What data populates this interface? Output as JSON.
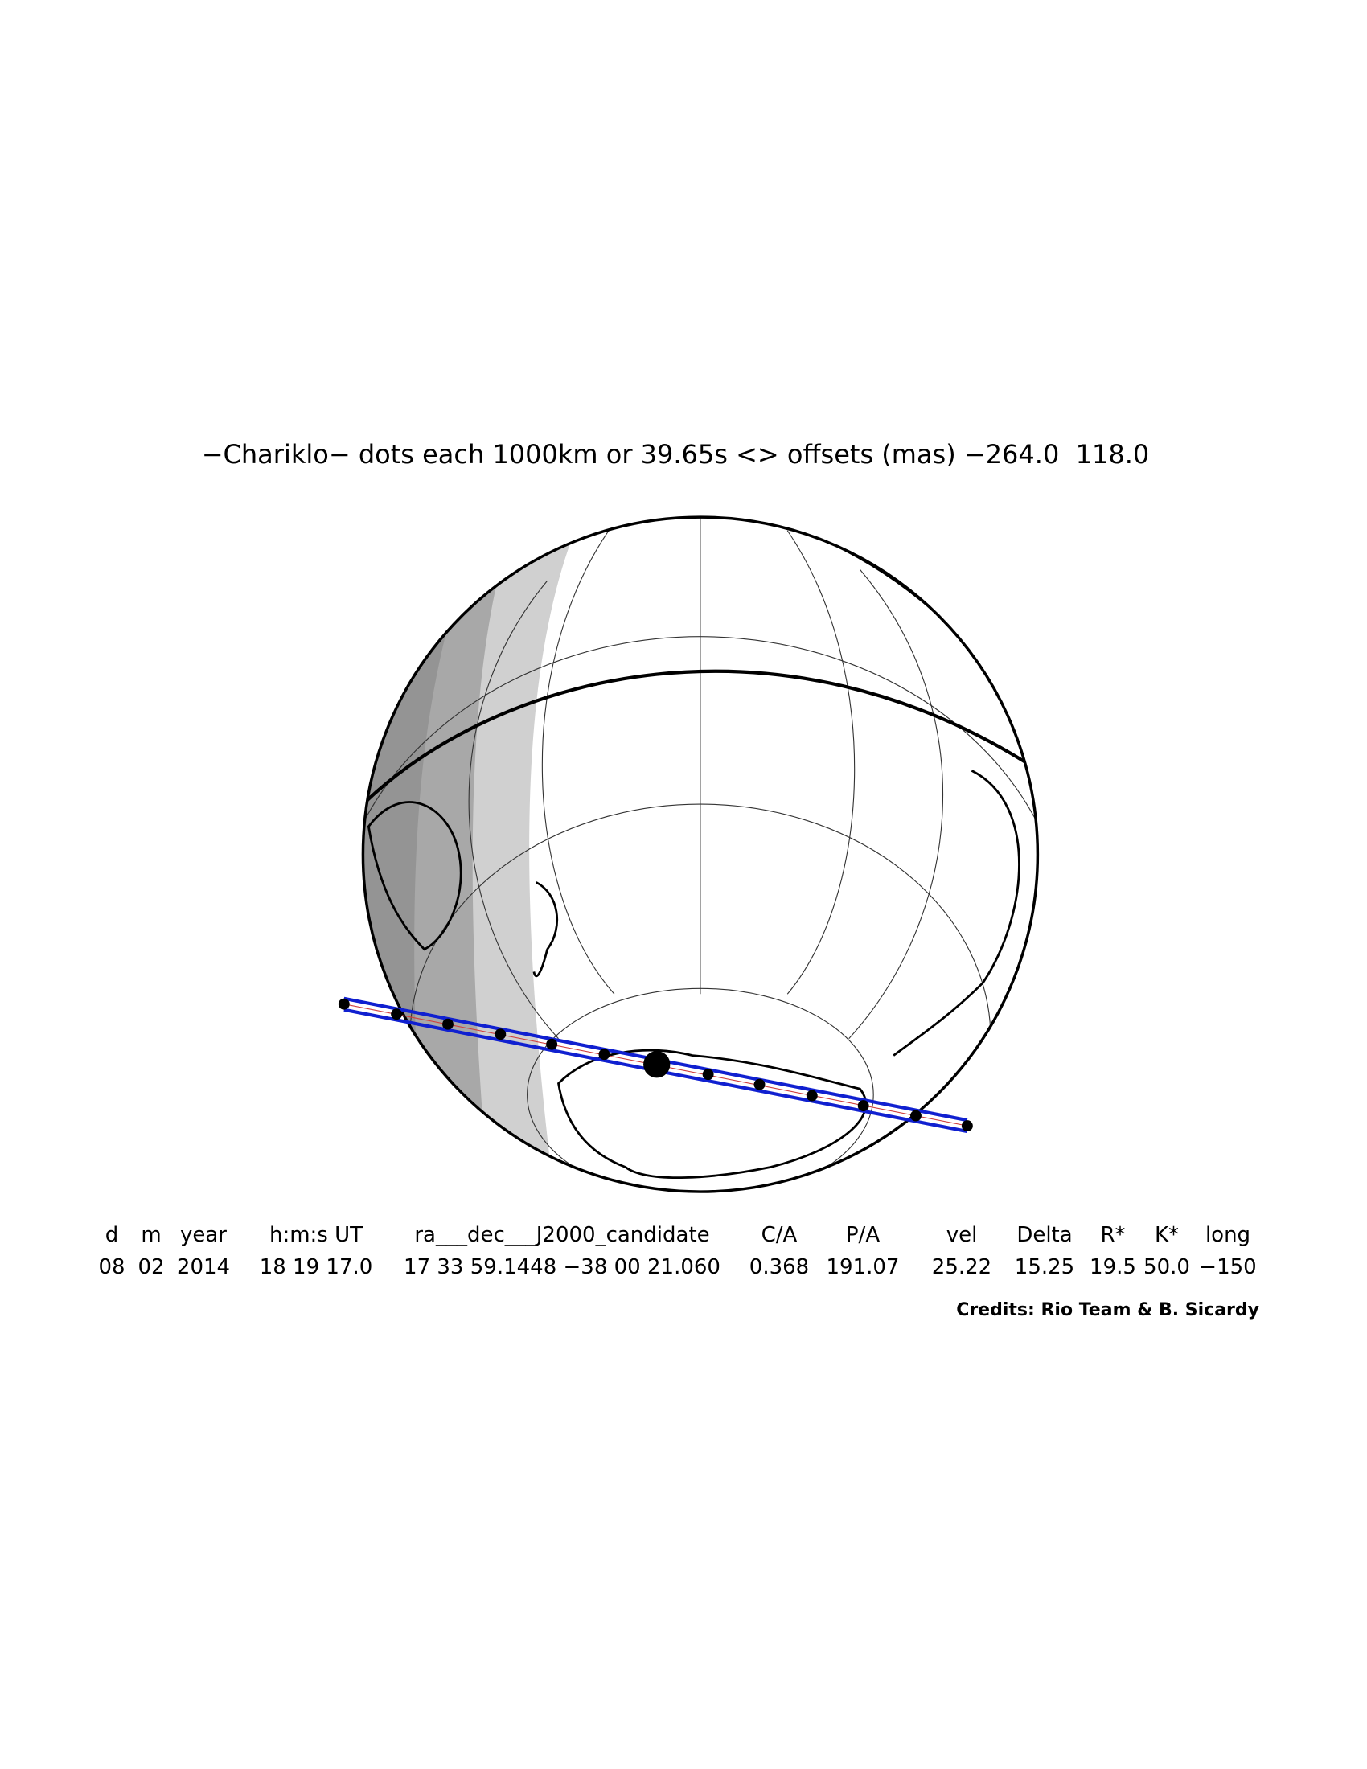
{
  "header": {
    "title": "−Chariklo− dots each 1000km or 39.65s <> offsets (mas) −264.0  118.0"
  },
  "table": {
    "columns": [
      "d",
      "m",
      "year",
      "h:m:s UT",
      "ra___dec___J2000_candidate",
      "C/A",
      "P/A",
      "vel",
      "Delta",
      "R*",
      "K*",
      "long"
    ],
    "rows": [
      [
        "08",
        "02",
        "2014",
        "18 19 17.0",
        "17 33 59.1448 −38 00 21.060",
        "0.368",
        "191.07",
        "25.22",
        "15.25",
        "19.5",
        "50.0",
        "−150"
      ]
    ]
  },
  "footer": {
    "credits": "Credits: Rio Team & B. Sicardy"
  }
}
